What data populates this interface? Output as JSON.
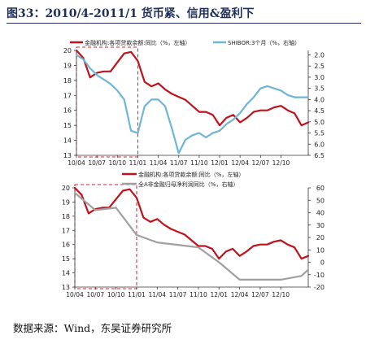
{
  "figure_title": "图33：2010/4-2011/1 货币紧、信用&盈利下",
  "source": "数据来源：Wind，东吴证券研究所",
  "colors": {
    "red": "#c0121c",
    "blue": "#6fb6d3",
    "gray": "#a0a0a0",
    "highlight": "#d9202a"
  },
  "chart_data": [
    {
      "type": "line",
      "legend_placement": "top",
      "grid": false,
      "x_ticks": [
        "10/04",
        "10/07",
        "10/10",
        "11/01",
        "11/04",
        "11/07",
        "11/10",
        "12/01",
        "12/04",
        "12/07",
        "12/10"
      ],
      "xlim": [
        "2010-04",
        "2013-02"
      ],
      "y_left": {
        "lim": [
          13,
          20
        ],
        "ticks": [
          "13",
          "14",
          "15",
          "16",
          "17",
          "18",
          "19",
          "20"
        ]
      },
      "y_right": {
        "lim": [
          6.5,
          1.8
        ],
        "inverted": true,
        "ticks": [
          "2.0",
          "2.5",
          "3.0",
          "3.5",
          "4.0",
          "4.5",
          "5.0",
          "5.5",
          "6.0",
          "6.5"
        ]
      },
      "highlight_period": [
        "2010-04",
        "2011-01"
      ],
      "series": [
        {
          "name": "金融机构:各项贷款余额:同比（%，左轴）",
          "axis": "left",
          "color": "red",
          "x": [
            "2010-04",
            "2010-05",
            "2010-06",
            "2010-07",
            "2010-08",
            "2010-09",
            "2010-10",
            "2010-11",
            "2010-12",
            "2011-01",
            "2011-02",
            "2011-03",
            "2011-04",
            "2011-05",
            "2011-06",
            "2011-07",
            "2011-08",
            "2011-09",
            "2011-10",
            "2011-11",
            "2011-12",
            "2012-01",
            "2012-02",
            "2012-03",
            "2012-04",
            "2012-05",
            "2012-06",
            "2012-07",
            "2012-08",
            "2012-09",
            "2012-10",
            "2012-11",
            "2012-12",
            "2013-01",
            "2013-02"
          ],
          "y": [
            20,
            19.5,
            18.2,
            18.5,
            18.6,
            18.6,
            19.2,
            19.8,
            19.9,
            19.3,
            17.9,
            17.6,
            17.8,
            17.4,
            17.1,
            16.9,
            16.7,
            16.3,
            15.9,
            15.9,
            15.7,
            15.0,
            15.5,
            15.7,
            15.2,
            15.5,
            15.9,
            16.0,
            16.0,
            16.2,
            16.3,
            16.0,
            15.8,
            15.0,
            15.2
          ]
        },
        {
          "name": "SHIBOR:3个月（%，右轴）",
          "axis": "right",
          "color": "blue",
          "x": [
            "2010-04",
            "2010-05",
            "2010-06",
            "2010-07",
            "2010-08",
            "2010-09",
            "2010-10",
            "2010-11",
            "2010-12",
            "2011-01",
            "2011-02",
            "2011-03",
            "2011-04",
            "2011-05",
            "2011-06",
            "2011-07",
            "2011-08",
            "2011-09",
            "2011-10",
            "2011-11",
            "2011-12",
            "2012-01",
            "2012-02",
            "2012-03",
            "2012-04",
            "2012-05",
            "2012-06",
            "2012-07",
            "2012-08",
            "2012-09",
            "2012-10",
            "2012-11",
            "2012-12",
            "2013-01",
            "2013-02"
          ],
          "y": [
            2.0,
            2.2,
            2.6,
            2.9,
            3.1,
            3.3,
            3.6,
            4.0,
            5.4,
            5.5,
            4.3,
            4.0,
            4.0,
            4.3,
            5.3,
            6.4,
            5.8,
            5.6,
            5.5,
            5.7,
            5.5,
            5.4,
            5.1,
            4.9,
            4.6,
            4.2,
            3.9,
            3.5,
            3.4,
            3.5,
            3.6,
            3.8,
            3.9,
            3.9,
            3.9
          ]
        }
      ]
    },
    {
      "type": "line",
      "legend_placement": "top",
      "grid": false,
      "x_ticks": [
        "10/04",
        "10/07",
        "10/10",
        "11/01",
        "11/04",
        "11/07",
        "11/10",
        "12/01",
        "12/04",
        "12/07",
        "12/10"
      ],
      "xlim": [
        "2010-04",
        "2013-02"
      ],
      "y_left": {
        "lim": [
          13,
          20
        ],
        "ticks": [
          "13",
          "14",
          "15",
          "16",
          "17",
          "18",
          "19",
          "20"
        ]
      },
      "y_right": {
        "lim": [
          -20,
          60
        ],
        "ticks": [
          "-20",
          "-10",
          "0",
          "10",
          "20",
          "30",
          "40",
          "50",
          "60"
        ]
      },
      "highlight_period": [
        "2010-04",
        "2011-01"
      ],
      "series": [
        {
          "name": "金融机构:各项贷款余额:同比（%，左轴）",
          "axis": "left",
          "color": "red",
          "x": [
            "2010-04",
            "2010-05",
            "2010-06",
            "2010-07",
            "2010-08",
            "2010-09",
            "2010-10",
            "2010-11",
            "2010-12",
            "2011-01",
            "2011-02",
            "2011-03",
            "2011-04",
            "2011-05",
            "2011-06",
            "2011-07",
            "2011-08",
            "2011-09",
            "2011-10",
            "2011-11",
            "2011-12",
            "2012-01",
            "2012-02",
            "2012-03",
            "2012-04",
            "2012-05",
            "2012-06",
            "2012-07",
            "2012-08",
            "2012-09",
            "2012-10",
            "2012-11",
            "2012-12",
            "2013-01",
            "2013-02"
          ],
          "y": [
            20,
            19.5,
            18.2,
            18.5,
            18.6,
            18.6,
            19.2,
            19.8,
            19.9,
            19.3,
            17.9,
            17.6,
            17.8,
            17.4,
            17.1,
            16.9,
            16.7,
            16.3,
            15.9,
            15.9,
            15.7,
            15.0,
            15.5,
            15.7,
            15.2,
            15.5,
            15.9,
            16.0,
            16.0,
            16.2,
            16.3,
            16.0,
            15.8,
            15.0,
            15.2
          ]
        },
        {
          "name": "全A非金融归母净利润同比（%，右轴）",
          "axis": "right",
          "color": "gray",
          "x": [
            "2010-04",
            "2010-07",
            "2010-10",
            "2011-01",
            "2011-04",
            "2011-07",
            "2011-10",
            "2012-01",
            "2012-04",
            "2012-07",
            "2012-10",
            "2013-01",
            "2013-02"
          ],
          "y": [
            56,
            42,
            44,
            22,
            16,
            14,
            12,
            0,
            -14,
            -14,
            -14,
            -11,
            -6
          ]
        }
      ]
    }
  ]
}
